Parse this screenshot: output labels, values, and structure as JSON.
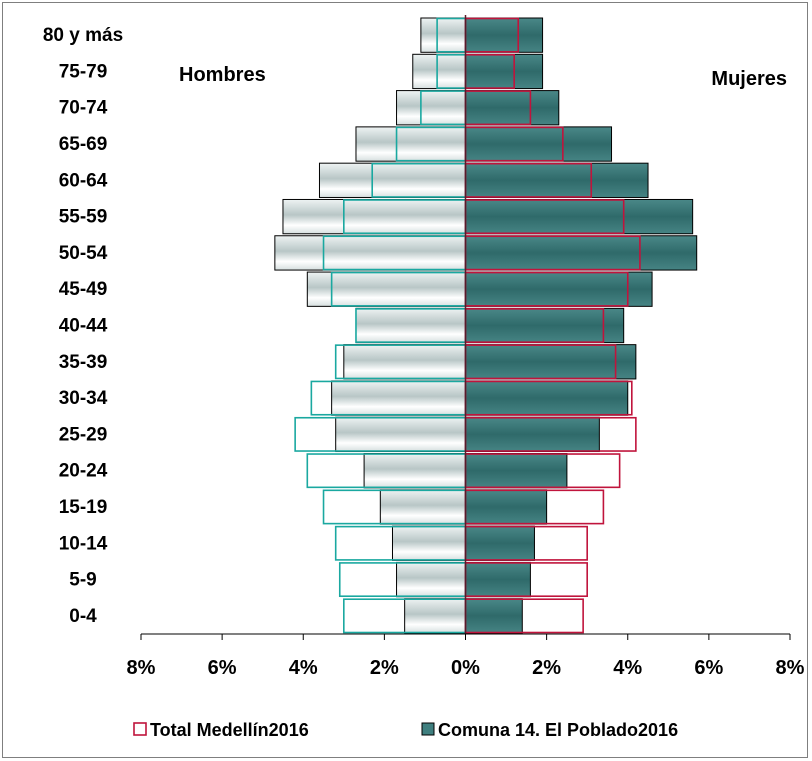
{
  "chart_data": {
    "type": "bar",
    "orientation": "horizontal",
    "subtype": "population-pyramid",
    "categories": [
      "0-4",
      "5-9",
      "10-14",
      "15-19",
      "20-24",
      "25-29",
      "30-34",
      "35-39",
      "40-44",
      "45-49",
      "50-54",
      "55-59",
      "60-64",
      "65-69",
      "70-74",
      "75-79",
      "80 y más"
    ],
    "side_labels": {
      "left": "Hombres",
      "right": "Mujeres"
    },
    "xlim": [
      -8,
      8
    ],
    "x_ticks": [
      "8%",
      "6%",
      "4%",
      "2%",
      "0%",
      "2%",
      "4%",
      "6%",
      "8%"
    ],
    "series": [
      {
        "name": "Comuna 14. El Poblado2016",
        "style": "filled",
        "left_color": "#dde5e5",
        "right_color": "#3f7f7f",
        "hombres": [
          1.5,
          1.7,
          1.8,
          2.1,
          2.5,
          3.2,
          3.3,
          3.0,
          2.7,
          3.9,
          4.7,
          4.5,
          3.6,
          2.7,
          1.7,
          1.3,
          1.1
        ],
        "mujeres": [
          1.4,
          1.6,
          1.7,
          2.0,
          2.5,
          3.3,
          4.0,
          4.2,
          3.9,
          4.6,
          5.7,
          5.6,
          4.5,
          3.6,
          2.3,
          1.9,
          1.9
        ]
      },
      {
        "name": "Total Medellín2016",
        "style": "outline",
        "left_color": "#1aa8a0",
        "right_color": "#c0143c",
        "hombres": [
          3.0,
          3.1,
          3.2,
          3.5,
          3.9,
          4.2,
          3.8,
          3.2,
          2.7,
          3.3,
          3.5,
          3.0,
          2.3,
          1.7,
          1.1,
          0.7,
          0.7
        ],
        "mujeres": [
          2.9,
          3.0,
          3.0,
          3.4,
          3.8,
          4.2,
          4.1,
          3.7,
          3.4,
          4.0,
          4.3,
          3.9,
          3.1,
          2.4,
          1.6,
          1.2,
          1.3
        ]
      }
    ],
    "legend": {
      "placement": "bottom",
      "order": [
        "Total Medellín2016",
        "Comuna 14. El Poblado2016"
      ]
    },
    "grid": false
  }
}
